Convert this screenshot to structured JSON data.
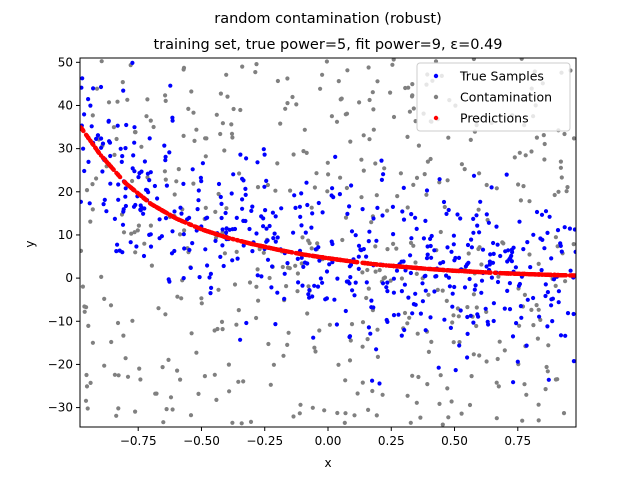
{
  "chart_data": {
    "type": "scatter",
    "title": "random contamination (robust)",
    "subtitle": "training set, true power=5, fit power=9, ε=0.49",
    "xlabel": "x",
    "ylabel": "y",
    "xlim": [
      -0.98,
      0.98
    ],
    "ylim": [
      -34.5,
      51
    ],
    "xticks": [
      -0.75,
      -0.5,
      -0.25,
      0.0,
      0.25,
      0.5,
      0.75
    ],
    "xtick_labels": [
      "−0.75",
      "−0.50",
      "−0.25",
      "0.00",
      "0.25",
      "0.50",
      "0.75"
    ],
    "yticks": [
      -30,
      -20,
      -10,
      0,
      10,
      20,
      30,
      40,
      50
    ],
    "ytick_labels": [
      "−30",
      "−20",
      "−10",
      "0",
      "10",
      "20",
      "30",
      "40",
      "50"
    ],
    "grid": false,
    "legend_position": "top-right",
    "series": [
      {
        "name": "True Samples",
        "color": "#0000ff",
        "marker": "dot",
        "description": "x uniform on [-1,1], y ≈ 4·(1-x)^... decaying curve plus noise (sd ≈ 10)"
      },
      {
        "name": "Contamination",
        "color": "#808080",
        "marker": "dot",
        "description": "uniform random points over x∈[-1,1], y∈[-34,51]"
      },
      {
        "name": "Predictions",
        "color": "#ff0000",
        "marker": "dot",
        "description": "fitted curve, ≈35 at x=-0.98, ≈4 at x=0, ≈0.5 at x=0.98"
      }
    ],
    "prediction_curve": {
      "x": [
        -0.98,
        -0.9,
        -0.8,
        -0.7,
        -0.6,
        -0.5,
        -0.4,
        -0.3,
        -0.2,
        -0.1,
        0.0,
        0.1,
        0.2,
        0.3,
        0.4,
        0.5,
        0.6,
        0.7,
        0.8,
        0.9,
        0.98
      ],
      "y": [
        35.2,
        28.6,
        22.0,
        17.2,
        13.8,
        11.3,
        9.4,
        7.9,
        6.6,
        5.5,
        4.6,
        3.8,
        3.1,
        2.6,
        2.1,
        1.7,
        1.4,
        1.1,
        0.9,
        0.7,
        0.6
      ]
    }
  }
}
